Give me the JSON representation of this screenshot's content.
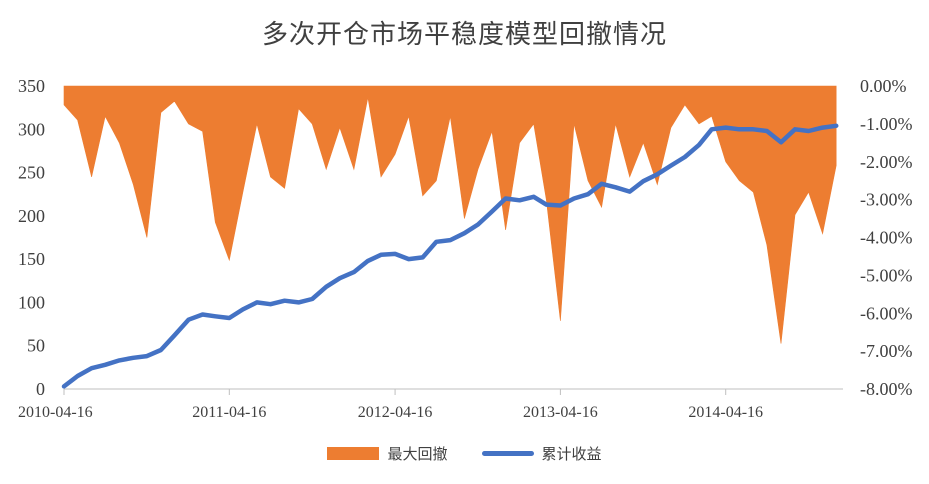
{
  "chart_data": {
    "type": "line",
    "title": "多次开仓市场平稳度模型回撤情况",
    "x_tick_labels": [
      "2010-04-16",
      "2011-04-16",
      "2012-04-16",
      "2013-04-16",
      "2014-04-16"
    ],
    "y_left": {
      "ylim": [
        0,
        350
      ],
      "ticks": [
        "0",
        "50",
        "100",
        "150",
        "200",
        "250",
        "300",
        "350"
      ]
    },
    "y_right": {
      "ylim": [
        -8.0,
        0.0
      ],
      "ticks": [
        "0.00%",
        "-1.00%",
        "-2.00%",
        "-3.00%",
        "-4.00%",
        "-5.00%",
        "-6.00%",
        "-7.00%",
        "-8.00%"
      ]
    },
    "grid": false,
    "legend_position": "bottom",
    "series": [
      {
        "name": "最大回撤",
        "type": "area",
        "axis": "right",
        "color": "#ED7D31",
        "x": [
          "2010-04-16",
          "2010-05-16",
          "2010-06-16",
          "2010-07-16",
          "2010-08-16",
          "2010-09-16",
          "2010-10-16",
          "2010-11-16",
          "2010-12-16",
          "2011-01-16",
          "2011-02-16",
          "2011-03-16",
          "2011-04-16",
          "2011-05-16",
          "2011-06-16",
          "2011-07-16",
          "2011-08-16",
          "2011-09-16",
          "2011-10-16",
          "2011-11-16",
          "2011-12-16",
          "2012-01-16",
          "2012-02-16",
          "2012-03-16",
          "2012-04-16",
          "2012-05-16",
          "2012-06-16",
          "2012-07-16",
          "2012-08-16",
          "2012-09-16",
          "2012-10-16",
          "2012-11-16",
          "2012-12-16",
          "2013-01-16",
          "2013-02-16",
          "2013-03-16",
          "2013-04-16",
          "2013-05-16",
          "2013-06-16",
          "2013-07-16",
          "2013-08-16",
          "2013-09-16",
          "2013-10-16",
          "2013-11-16",
          "2013-12-16",
          "2014-01-16",
          "2014-02-16",
          "2014-03-16",
          "2014-04-16",
          "2014-05-16",
          "2014-06-16",
          "2014-07-16",
          "2014-08-16",
          "2014-09-16",
          "2014-10-16",
          "2014-11-16",
          "2014-12-16"
        ],
        "values": [
          -0.5,
          -0.9,
          -2.4,
          -0.8,
          -1.5,
          -2.6,
          -4.0,
          -0.7,
          -0.4,
          -1.0,
          -1.2,
          -3.6,
          -4.6,
          -2.8,
          -1.0,
          -2.4,
          -2.7,
          -0.6,
          -1.0,
          -2.2,
          -1.1,
          -2.2,
          -0.3,
          -2.4,
          -1.8,
          -0.8,
          -2.9,
          -2.5,
          -0.8,
          -3.5,
          -2.2,
          -1.2,
          -3.8,
          -1.5,
          -1.0,
          -3.0,
          -6.2,
          -1.0,
          -2.5,
          -3.2,
          -1.0,
          -2.4,
          -1.5,
          -2.6,
          -1.1,
          -0.5,
          -1.0,
          -0.8,
          -2.0,
          -2.5,
          -2.8,
          -4.2,
          -6.8,
          -3.4,
          -2.8,
          -3.9,
          -2.1
        ]
      },
      {
        "name": "累计收益",
        "type": "line",
        "axis": "left",
        "color": "#4472C4",
        "x": [
          "2010-04-16",
          "2010-05-16",
          "2010-06-16",
          "2010-07-16",
          "2010-08-16",
          "2010-09-16",
          "2010-10-16",
          "2010-11-16",
          "2010-12-16",
          "2011-01-16",
          "2011-02-16",
          "2011-03-16",
          "2011-04-16",
          "2011-05-16",
          "2011-06-16",
          "2011-07-16",
          "2011-08-16",
          "2011-09-16",
          "2011-10-16",
          "2011-11-16",
          "2011-12-16",
          "2012-01-16",
          "2012-02-16",
          "2012-03-16",
          "2012-04-16",
          "2012-05-16",
          "2012-06-16",
          "2012-07-16",
          "2012-08-16",
          "2012-09-16",
          "2012-10-16",
          "2012-11-16",
          "2012-12-16",
          "2013-01-16",
          "2013-02-16",
          "2013-03-16",
          "2013-04-16",
          "2013-05-16",
          "2013-06-16",
          "2013-07-16",
          "2013-08-16",
          "2013-09-16",
          "2013-10-16",
          "2013-11-16",
          "2013-12-16",
          "2014-01-16",
          "2014-02-16",
          "2014-03-16",
          "2014-04-16",
          "2014-05-16",
          "2014-06-16",
          "2014-07-16",
          "2014-08-16",
          "2014-09-16",
          "2014-10-16",
          "2014-11-16",
          "2014-12-16"
        ],
        "values": [
          3,
          15,
          24,
          28,
          33,
          36,
          38,
          45,
          62,
          80,
          86,
          84,
          82,
          92,
          100,
          98,
          102,
          100,
          104,
          118,
          128,
          135,
          148,
          155,
          156,
          150,
          152,
          170,
          172,
          180,
          190,
          205,
          220,
          218,
          222,
          213,
          212,
          220,
          225,
          237,
          233,
          228,
          240,
          248,
          258,
          268,
          282,
          300,
          302,
          300,
          300,
          298,
          285,
          300,
          298,
          302,
          304
        ]
      }
    ]
  }
}
